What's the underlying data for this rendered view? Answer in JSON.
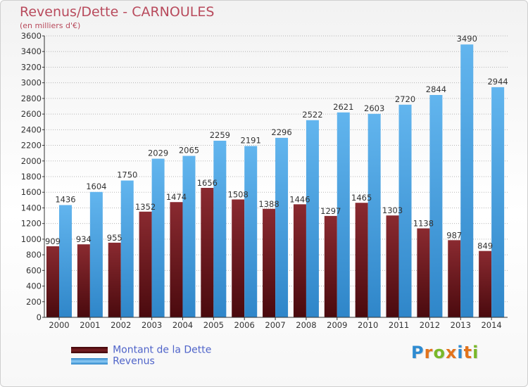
{
  "title": "Revenus/Dette - CARNOULES",
  "subtitle": "(en milliers d'€)",
  "colors": {
    "dette": "#7a1f24",
    "dette_dark": "#4a0a0e",
    "revenus": "#5aaee8",
    "revenus_dark": "#2f86c9",
    "axis": "#333333",
    "grid": "#b5b5b5"
  },
  "legend": {
    "items": [
      {
        "label": "Montant de la Dette",
        "color": "#6b1a1e"
      },
      {
        "label": "Revenus",
        "color": "#4aa3e2"
      }
    ]
  },
  "logo": {
    "text": "Proxiti",
    "letter_colors": [
      "#2e8bd1",
      "#e2731c",
      "#79b82a",
      "#e2731c",
      "#2e8bd1",
      "#e2731c",
      "#79b82a"
    ]
  },
  "chart_data": {
    "type": "bar",
    "title": "Revenus/Dette - CARNOULES",
    "subtitle": "(en milliers d'€)",
    "xlabel": "",
    "ylabel": "",
    "ylim": [
      0,
      3600
    ],
    "ytick_step": 200,
    "ytick_labels": [
      "0",
      "200",
      "400",
      "600",
      "800",
      "1000",
      "1200",
      "1400",
      "1600",
      "1800",
      "2000",
      "2200",
      "2400",
      "2600",
      "2800",
      "3000",
      "3200",
      "3400",
      "3600"
    ],
    "grid": true,
    "legend_position": "bottom-left",
    "categories": [
      "2000",
      "2001",
      "2002",
      "2003",
      "2004",
      "2005",
      "2006",
      "2007",
      "2008",
      "2009",
      "2010",
      "2011",
      "2012",
      "2013",
      "2014"
    ],
    "series": [
      {
        "name": "Montant de la Dette",
        "values": [
          909,
          934,
          955,
          1352,
          1474,
          1656,
          1508,
          1388,
          1446,
          1297,
          1465,
          1303,
          1138,
          987,
          849
        ],
        "labels": [
          "909",
          "934",
          "955",
          "1352",
          "1474",
          "1656",
          "1508",
          "1388",
          "1446",
          "1297",
          "1465",
          "1303",
          "1138",
          "987",
          "849"
        ]
      },
      {
        "name": "Revenus",
        "values": [
          1436,
          1604,
          1750,
          2029,
          2065,
          2259,
          2191,
          2296,
          2522,
          2621,
          2603,
          2720,
          2844,
          3490,
          2944
        ],
        "labels": [
          "1436",
          "1604",
          "1750",
          "2029",
          "2065",
          "2259",
          "2191",
          "2296",
          "2522",
          "2621",
          "2603",
          "2720",
          "2844",
          "3490",
          "2944"
        ]
      }
    ]
  }
}
